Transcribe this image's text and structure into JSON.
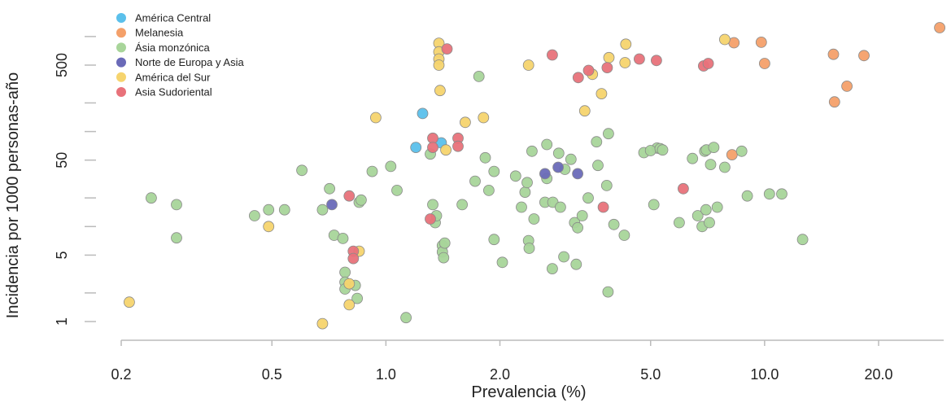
{
  "chart_data": {
    "type": "scatter",
    "x_scale": "log",
    "y_scale": "log",
    "xlabel": "Prevalencia (%)",
    "ylabel": "Incidencia por 1000 personas-año",
    "x_ticks": [
      0.2,
      0.5,
      1.0,
      2.0,
      5.0,
      10.0,
      20.0
    ],
    "x_tick_labels": [
      "0.2",
      "0.5",
      "1.0",
      "2.0",
      "5.0",
      "10.0",
      "20.0"
    ],
    "y_ticks": [
      1,
      5,
      50,
      500
    ],
    "y_tick_labels": [
      "1",
      "5",
      "50",
      "500"
    ],
    "xlim": [
      0.19,
      30
    ],
    "ylim": [
      0.8,
      1500
    ],
    "legend_position": "top-left",
    "series": [
      {
        "name": "América Central",
        "color": "#5bc0eb",
        "points": [
          [
            1.25,
            155
          ],
          [
            1.2,
            68
          ],
          [
            1.4,
            76
          ]
        ]
      },
      {
        "name": "Melanesia",
        "color": "#f4a06a",
        "points": [
          [
            29,
            1240
          ],
          [
            8.3,
            860
          ],
          [
            9.8,
            870
          ],
          [
            15.2,
            650
          ],
          [
            18.3,
            630
          ],
          [
            10.0,
            520
          ],
          [
            16.5,
            300
          ],
          [
            15.3,
            205
          ],
          [
            8.2,
            57
          ]
        ]
      },
      {
        "name": "Ásia monzónica",
        "color": "#a8d59a",
        "points": [
          [
            0.24,
            20
          ],
          [
            0.28,
            17
          ],
          [
            0.28,
            7.6
          ],
          [
            0.45,
            13
          ],
          [
            0.49,
            15
          ],
          [
            0.54,
            15
          ],
          [
            0.6,
            39
          ],
          [
            0.68,
            15
          ],
          [
            0.71,
            25
          ],
          [
            0.73,
            8.1
          ],
          [
            0.77,
            7.5
          ],
          [
            0.78,
            3.3
          ],
          [
            0.78,
            2.6
          ],
          [
            0.78,
            2.2
          ],
          [
            0.83,
            2.4
          ],
          [
            0.85,
            18
          ],
          [
            0.86,
            19
          ],
          [
            0.84,
            1.75
          ],
          [
            0.92,
            38
          ],
          [
            1.03,
            43
          ],
          [
            1.07,
            24
          ],
          [
            1.13,
            1.1
          ],
          [
            1.31,
            58
          ],
          [
            1.33,
            17
          ],
          [
            1.35,
            11
          ],
          [
            1.36,
            13
          ],
          [
            1.41,
            6.3
          ],
          [
            1.41,
            5.4
          ],
          [
            1.42,
            4.7
          ],
          [
            1.43,
            6.7
          ],
          [
            1.59,
            17
          ],
          [
            1.72,
            30
          ],
          [
            1.76,
            380
          ],
          [
            1.83,
            53
          ],
          [
            1.87,
            24
          ],
          [
            1.93,
            38
          ],
          [
            1.93,
            7.3
          ],
          [
            2.03,
            4.2
          ],
          [
            2.2,
            34
          ],
          [
            2.28,
            16
          ],
          [
            2.33,
            23
          ],
          [
            2.36,
            29
          ],
          [
            2.38,
            7.1
          ],
          [
            2.39,
            5.9
          ],
          [
            2.43,
            62
          ],
          [
            2.46,
            12
          ],
          [
            2.63,
            18
          ],
          [
            2.66,
            73
          ],
          [
            2.66,
            32
          ],
          [
            2.75,
            3.6
          ],
          [
            2.76,
            18
          ],
          [
            2.86,
            59
          ],
          [
            2.89,
            16
          ],
          [
            2.95,
            4.8
          ],
          [
            2.97,
            40
          ],
          [
            3.08,
            51
          ],
          [
            3.15,
            11
          ],
          [
            3.18,
            4.0
          ],
          [
            3.21,
            9.7
          ],
          [
            3.3,
            13
          ],
          [
            3.42,
            20
          ],
          [
            3.63,
            44
          ],
          [
            3.6,
            78
          ],
          [
            3.87,
            95
          ],
          [
            3.83,
            27
          ],
          [
            3.86,
            2.05
          ],
          [
            4.0,
            10.5
          ],
          [
            4.26,
            8.1
          ],
          [
            4.8,
            60
          ],
          [
            5.2,
            67
          ],
          [
            5.0,
            63
          ],
          [
            5.3,
            66
          ],
          [
            5.1,
            17
          ],
          [
            5.38,
            64
          ],
          [
            5.95,
            11
          ],
          [
            6.45,
            52
          ],
          [
            6.66,
            13
          ],
          [
            6.84,
            10
          ],
          [
            6.95,
            62
          ],
          [
            7.0,
            15
          ],
          [
            7.02,
            64
          ],
          [
            7.15,
            11
          ],
          [
            7.2,
            45
          ],
          [
            7.34,
            68
          ],
          [
            7.5,
            16
          ],
          [
            7.85,
            42
          ],
          [
            8.7,
            62
          ],
          [
            9.0,
            21
          ],
          [
            10.3,
            22
          ],
          [
            11.1,
            22
          ],
          [
            12.6,
            7.3
          ]
        ]
      },
      {
        "name": "Norte de Europa y Asia",
        "color": "#6a6ab8",
        "points": [
          [
            0.72,
            17
          ],
          [
            2.63,
            36
          ],
          [
            2.85,
            42
          ],
          [
            3.21,
            36
          ]
        ]
      },
      {
        "name": "América del Sur",
        "color": "#f6d46e",
        "points": [
          [
            0.21,
            1.6
          ],
          [
            0.49,
            10
          ],
          [
            0.68,
            0.95
          ],
          [
            0.85,
            5.5
          ],
          [
            0.8,
            2.5
          ],
          [
            0.8,
            1.5
          ],
          [
            0.94,
            140
          ],
          [
            1.38,
            850
          ],
          [
            1.38,
            690
          ],
          [
            1.38,
            580
          ],
          [
            1.38,
            500
          ],
          [
            1.39,
            270
          ],
          [
            1.44,
            64
          ],
          [
            1.62,
            125
          ],
          [
            1.81,
            140
          ],
          [
            2.38,
            500
          ],
          [
            3.35,
            165
          ],
          [
            3.51,
            400
          ],
          [
            3.71,
            250
          ],
          [
            3.88,
            600
          ],
          [
            4.28,
            530
          ],
          [
            4.3,
            830
          ],
          [
            7.85,
            930
          ]
        ]
      },
      {
        "name": "Asia Sudoriental",
        "color": "#e8727a",
        "points": [
          [
            0.8,
            21
          ],
          [
            0.82,
            5.5
          ],
          [
            0.82,
            4.6
          ],
          [
            1.31,
            12
          ],
          [
            1.33,
            85
          ],
          [
            1.33,
            68
          ],
          [
            1.45,
            740
          ],
          [
            1.55,
            85
          ],
          [
            1.55,
            70
          ],
          [
            2.75,
            640
          ],
          [
            3.22,
            370
          ],
          [
            3.43,
            440
          ],
          [
            3.75,
            16
          ],
          [
            3.84,
            470
          ],
          [
            4.67,
            580
          ],
          [
            5.18,
            560
          ],
          [
            6.1,
            25
          ],
          [
            6.9,
            490
          ],
          [
            7.1,
            520
          ]
        ]
      }
    ]
  }
}
